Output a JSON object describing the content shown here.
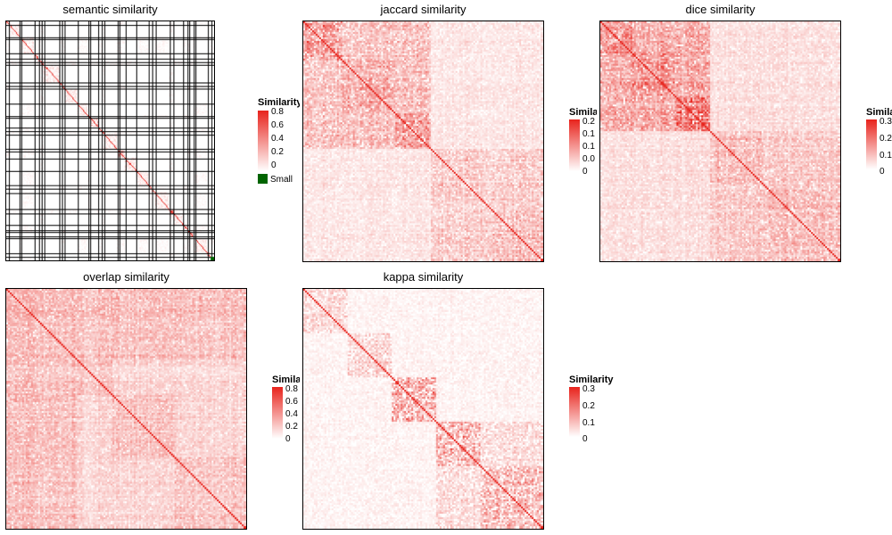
{
  "chart_data": [
    {
      "type": "heatmap",
      "title": "semantic similarity",
      "legend": {
        "title": "Similarity",
        "ticks": [
          "0.8",
          "0.6",
          "0.4",
          "0.2",
          "0"
        ],
        "small_label": "Small"
      },
      "value_range": [
        0,
        0.8
      ],
      "colors": {
        "low": "#ffffff",
        "high": "#e8231c",
        "small_cluster": "#006400",
        "grid": "#000000"
      }
    },
    {
      "type": "heatmap",
      "title": "jaccard similarity",
      "legend": {
        "title": "Similarity",
        "ticks": [
          "0.2",
          "0.1",
          "0.1",
          "0.0",
          "0"
        ]
      },
      "value_range": [
        0,
        0.2
      ],
      "colors": {
        "low": "#ffffff",
        "high": "#e8231c"
      }
    },
    {
      "type": "heatmap",
      "title": "dice similarity",
      "legend": {
        "title": "Similarity",
        "ticks": [
          "0.3",
          "0.2",
          "0.1",
          "0"
        ]
      },
      "value_range": [
        0,
        0.3
      ],
      "colors": {
        "low": "#ffffff",
        "high": "#e8231c"
      }
    },
    {
      "type": "heatmap",
      "title": "overlap similarity",
      "legend": {
        "title": "Similarity",
        "ticks": [
          "0.8",
          "0.6",
          "0.4",
          "0.2",
          "0"
        ]
      },
      "value_range": [
        0,
        0.8
      ],
      "colors": {
        "low": "#ffffff",
        "high": "#e8231c"
      }
    },
    {
      "type": "heatmap",
      "title": "kappa similarity",
      "legend": {
        "title": "Similarity",
        "ticks": [
          "0.3",
          "0.2",
          "0.1",
          "0"
        ]
      },
      "value_range": [
        0,
        0.3
      ],
      "colors": {
        "low": "#ffffff",
        "high": "#e8231c"
      }
    }
  ]
}
